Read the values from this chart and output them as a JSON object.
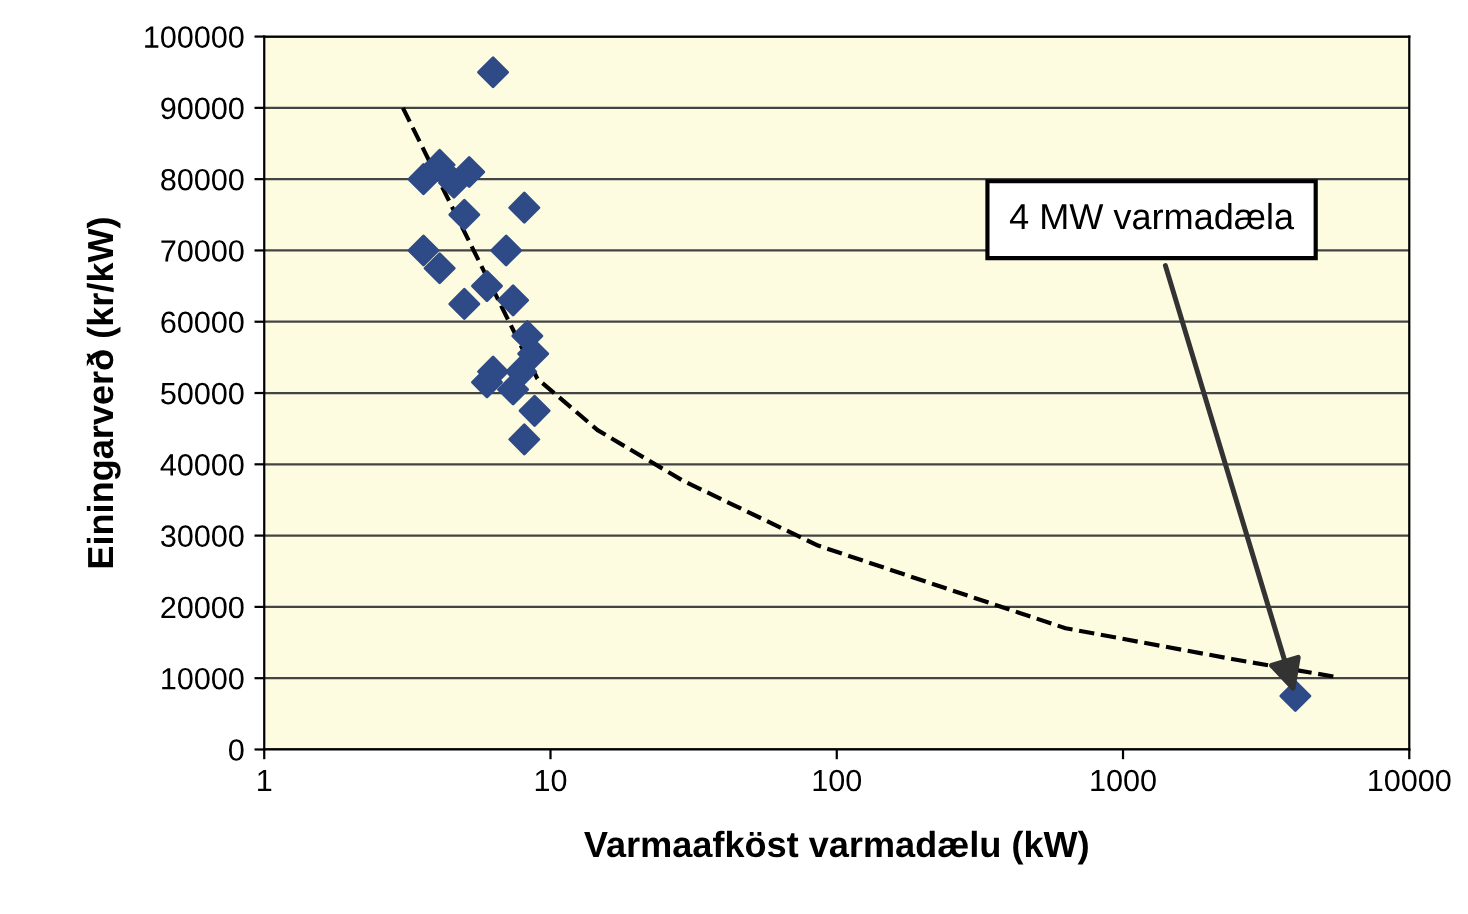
{
  "chart_data": {
    "type": "scatter",
    "xlabel": "Varmaafköst varmadælu (kW)",
    "ylabel": "Einingarverð (kr/kW)",
    "log": "x",
    "xlim": [
      1,
      10000
    ],
    "xticks": [
      1,
      10,
      100,
      1000,
      10000
    ],
    "ylim": [
      0,
      100000
    ],
    "yticks": [
      0,
      10000,
      20000,
      30000,
      40000,
      50000,
      60000,
      70000,
      80000,
      90000,
      100000
    ],
    "grid": "y",
    "legend": false,
    "series": [
      {
        "color": "#2e4a87",
        "marker": "diamond",
        "x": [
          6.3,
          3.6,
          4.1,
          4.6,
          5.2,
          5.0,
          8.1,
          3.6,
          4.1,
          7.0,
          6.0,
          5.0,
          7.4,
          8.3,
          8.7,
          6.3,
          6.0,
          7.9,
          7.4,
          8.8,
          8.1,
          4000
        ],
        "values": [
          95000,
          80000,
          82000,
          79500,
          81000,
          75000,
          76000,
          70000,
          67500,
          70000,
          65000,
          62500,
          63000,
          58000,
          55500,
          53000,
          51500,
          53000,
          50500,
          47500,
          43500,
          7500
        ]
      },
      {
        "type": "line",
        "color": "#000000",
        "line_style": "dashed",
        "marker": "none",
        "x": [
          3.05,
          9,
          14.6,
          29,
          86,
          630,
          2400,
          5500
        ],
        "values": [
          90000,
          52000,
          44800,
          37700,
          28600,
          17000,
          12700,
          10200
        ]
      }
    ],
    "annotations": [
      {
        "text": "4 MW varmadæla",
        "x": 4000,
        "y": 7500
      }
    ]
  }
}
